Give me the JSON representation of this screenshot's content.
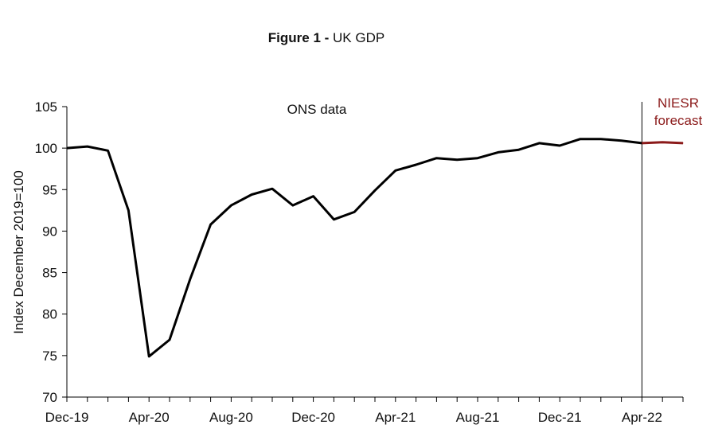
{
  "chart_data": {
    "type": "line",
    "title_bold": "Figure 1 -",
    "title_rest": " UK GDP",
    "ylabel": "Index December 2019=100",
    "ylim": [
      70,
      105
    ],
    "yticks": [
      70,
      75,
      80,
      85,
      90,
      95,
      100,
      105
    ],
    "x_labels": [
      "Dec-19",
      "Apr-20",
      "Aug-20",
      "Dec-20",
      "Apr-21",
      "Aug-21",
      "Dec-21",
      "Apr-22"
    ],
    "colors": {
      "ons": "#000000",
      "forecast": "#8b1a1a",
      "axis": "#000000"
    },
    "annotations": {
      "ons": "ONS data",
      "forecast_line1": "NIESR",
      "forecast_line2": "forecast"
    },
    "series": [
      {
        "name": "ONS data",
        "months": [
          "2019-12",
          "2020-01",
          "2020-02",
          "2020-03",
          "2020-04",
          "2020-05",
          "2020-06",
          "2020-07",
          "2020-08",
          "2020-09",
          "2020-10",
          "2020-11",
          "2020-12",
          "2021-01",
          "2021-02",
          "2021-03",
          "2021-04",
          "2021-05",
          "2021-06",
          "2021-07",
          "2021-08",
          "2021-09",
          "2021-10",
          "2021-11",
          "2021-12",
          "2022-01",
          "2022-02",
          "2022-03",
          "2022-04"
        ],
        "values": [
          100.0,
          100.2,
          99.7,
          92.5,
          74.9,
          76.9,
          84.2,
          90.8,
          93.1,
          94.4,
          95.1,
          93.1,
          94.2,
          91.4,
          92.3,
          94.9,
          97.3,
          98.0,
          98.8,
          98.6,
          98.8,
          99.5,
          99.8,
          100.6,
          100.3,
          101.1,
          101.1,
          100.9,
          100.6
        ]
      },
      {
        "name": "NIESR forecast",
        "months": [
          "2022-04",
          "2022-05",
          "2022-06"
        ],
        "values": [
          100.6,
          100.7,
          100.6
        ]
      }
    ]
  }
}
